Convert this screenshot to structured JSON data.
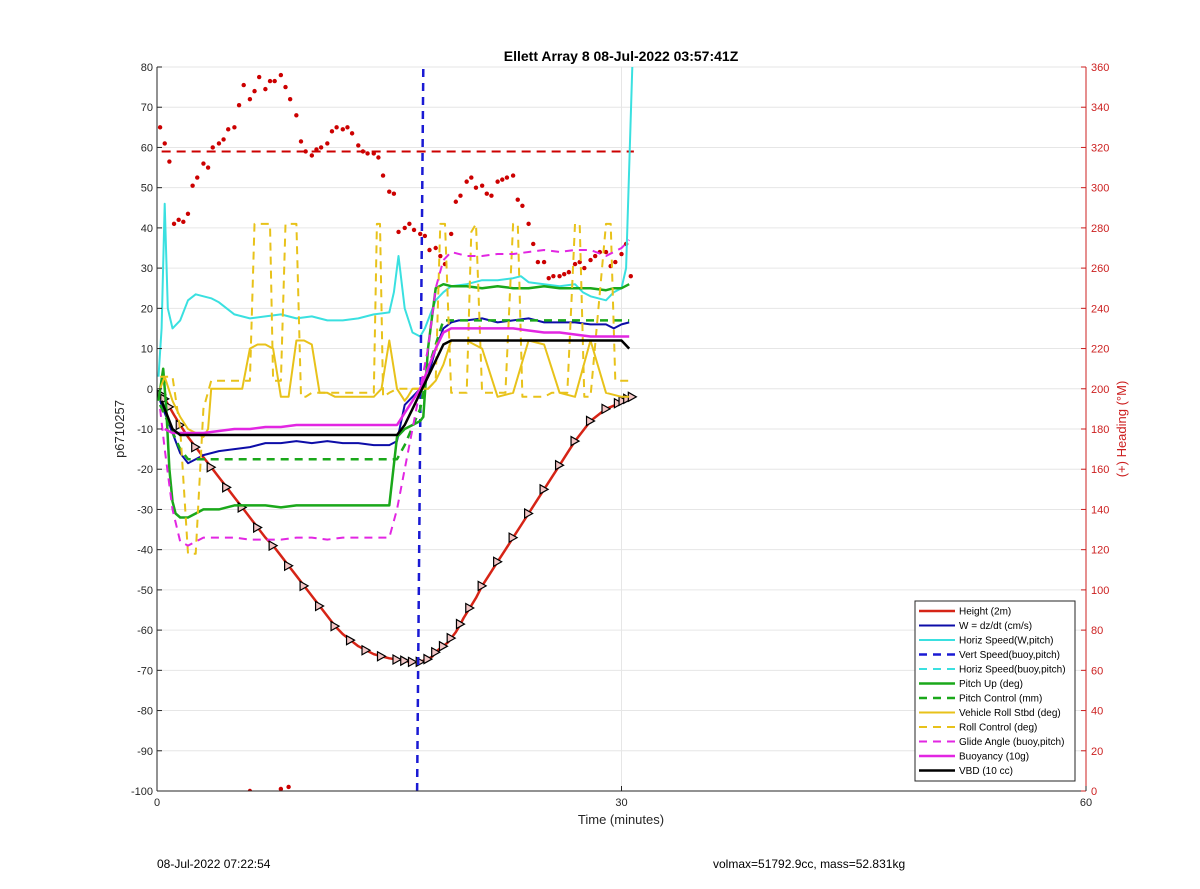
{
  "footer": {
    "timestamp": "08-Jul-2022 07:22:54",
    "stats": "volmax=51792.9cc, mass=52.831kg"
  },
  "chart_data": {
    "type": "line",
    "title": "Ellett Array 8 08-Jul-2022 03:57:41Z",
    "xlabel": "Time (minutes)",
    "ylabel": "p6710257",
    "y2label": "(+) Heading (°M)",
    "xlim": [
      0,
      60
    ],
    "ylim": [
      -100,
      80
    ],
    "y2lim": [
      0,
      360
    ],
    "xticks": [
      0,
      30,
      60
    ],
    "yticks": [
      -100,
      -90,
      -80,
      -70,
      -60,
      -50,
      -40,
      -30,
      -20,
      -10,
      0,
      10,
      20,
      30,
      40,
      50,
      60,
      70,
      80
    ],
    "y2ticks": [
      0,
      20,
      40,
      60,
      80,
      100,
      120,
      140,
      160,
      180,
      200,
      220,
      240,
      260,
      280,
      300,
      320,
      340,
      360
    ],
    "grid": true,
    "legend_position": "bottom-right",
    "colors": {
      "axis": "#262626",
      "right_axis": "#cc1f1f",
      "grid": "#e6e6e6",
      "heading_points": "#cc0000"
    },
    "series": [
      {
        "name": "Height (2m)",
        "color": "#d62416",
        "width": 2.5,
        "dash": "",
        "markers": "triangle",
        "x": [
          0.3,
          0.5,
          0.8,
          1.1,
          1.5,
          2,
          2.5,
          3,
          3.5,
          4,
          4.5,
          5,
          5.5,
          6,
          6.5,
          7,
          7.5,
          8,
          8.5,
          9,
          9.5,
          10,
          10.5,
          11,
          11.5,
          12,
          12.5,
          13,
          13.5,
          14,
          14.5,
          15,
          15.5,
          15.8,
          16,
          16.2,
          16.5,
          16.7,
          17,
          17.2,
          17.5,
          17.8,
          18,
          18.2,
          18.5,
          18.8,
          19,
          19.3,
          19.6,
          19.8,
          20.2,
          20.6,
          21,
          21.5,
          22,
          22.5,
          23,
          23.5,
          24,
          24.5,
          25,
          25.5,
          26,
          26.5,
          27,
          27.5,
          28,
          28.5,
          29,
          29.5,
          29.8,
          30.1,
          30.4,
          30.7
        ],
        "y": [
          -1.5,
          -2.5,
          -4.5,
          -6.5,
          -9,
          -12,
          -14.5,
          -17,
          -19.5,
          -22,
          -24.5,
          -27,
          -29.5,
          -32,
          -34.5,
          -37,
          -39,
          -41.5,
          -44,
          -46.5,
          -49,
          -51.5,
          -54,
          -56.5,
          -59,
          -61,
          -62.5,
          -64,
          -65,
          -66,
          -66.5,
          -67,
          -67.3,
          -67.4,
          -67.6,
          -67.8,
          -67.9,
          -68,
          -67.9,
          -67.6,
          -67.2,
          -66.5,
          -65.5,
          -64.8,
          -64,
          -63,
          -62,
          -60.5,
          -58.5,
          -57,
          -54.5,
          -52,
          -49,
          -46,
          -43,
          -40,
          -37,
          -34,
          -31,
          -28,
          -25,
          -22,
          -19,
          -16,
          -13,
          -10.5,
          -8,
          -6.5,
          -5,
          -4.2,
          -3.6,
          -3,
          -2.5,
          -2
        ]
      },
      {
        "name": "W = dz/dt (cm/s)",
        "color": "#0d0da8",
        "width": 2,
        "dash": "",
        "x": [
          0.2,
          0.5,
          1,
          1.5,
          2,
          2.5,
          3,
          3.5,
          4,
          5,
          6,
          7,
          8,
          9,
          10,
          11,
          12,
          13,
          14,
          15,
          15.5,
          16,
          16.5,
          17,
          17.5,
          18,
          18.5,
          19,
          19.5,
          20,
          21,
          22,
          23,
          24,
          25,
          26,
          27,
          28,
          29,
          29.5,
          30,
          30.5
        ],
        "y": [
          -3,
          -6,
          -11,
          -16,
          -18.5,
          -17.5,
          -16.5,
          -16,
          -15.5,
          -15,
          -14.5,
          -13.5,
          -13.5,
          -13,
          -13.5,
          -13,
          -13.5,
          -13.5,
          -14,
          -14,
          -13,
          -4,
          -2,
          0,
          3,
          10,
          15,
          16.5,
          17,
          17,
          17.5,
          16.5,
          17,
          17.5,
          16.5,
          16.5,
          16.5,
          16,
          16,
          15,
          16,
          16.5
        ]
      },
      {
        "name": "Horiz Speed(W,pitch)",
        "color": "#3ae0e0",
        "width": 2,
        "dash": "",
        "x": [
          0.1,
          0.3,
          0.5,
          0.7,
          1,
          1.5,
          2,
          2.5,
          3,
          3.5,
          4,
          5,
          6,
          7,
          8,
          9,
          10,
          11,
          12,
          13,
          14,
          15,
          15.3,
          15.6,
          16,
          16.5,
          17,
          17.3,
          17.6,
          18,
          18.5,
          19,
          20,
          21,
          22,
          23,
          23.5,
          24,
          25,
          26,
          27,
          27.5,
          28,
          29,
          29.5,
          30,
          30.3,
          30.5,
          30.7
        ],
        "y": [
          3,
          15,
          46,
          20,
          15,
          17,
          22,
          23.5,
          23,
          22.5,
          21.5,
          18.5,
          17.5,
          18,
          18.5,
          17.5,
          18,
          17,
          17,
          17.5,
          18.5,
          19,
          24,
          33,
          20,
          14,
          13,
          15,
          18,
          22,
          24,
          25.5,
          26,
          27,
          27,
          27.5,
          28,
          26.5,
          26,
          25.5,
          26,
          24,
          23,
          22,
          24,
          25,
          30,
          55,
          80
        ]
      },
      {
        "name": "Vert Speed(buoy,pitch)",
        "color": "#1a1ad4",
        "width": 2.5,
        "dash": "8,6",
        "x": [
          16.8,
          17.2
        ],
        "y": [
          -100,
          80
        ]
      },
      {
        "name": "Horiz Speed(buoy,pitch)",
        "color": "#3ae0e0",
        "width": 2,
        "dash": "8,6",
        "x": [],
        "y": []
      },
      {
        "name": "Pitch Up (deg)",
        "color": "#1aa81a",
        "width": 2.5,
        "dash": "",
        "x": [
          0.1,
          0.4,
          0.6,
          0.8,
          1,
          1.2,
          1.5,
          2,
          2.5,
          3,
          3.5,
          4,
          5,
          6,
          7,
          8,
          9,
          10,
          11,
          12,
          13,
          14,
          15,
          15.5,
          16,
          16.5,
          17,
          17.2,
          17.5,
          18,
          18.5,
          19,
          20,
          21,
          22,
          23,
          24,
          25,
          26,
          27,
          28,
          29,
          29.5,
          30,
          30.5
        ],
        "y": [
          -3,
          5,
          -5,
          -20,
          -28,
          -31,
          -32,
          -32,
          -31,
          -30,
          -30,
          -30,
          -29,
          -29,
          -29,
          -29.5,
          -29,
          -29,
          -29,
          -29,
          -29,
          -29,
          -29,
          -12,
          -10,
          -9,
          -8,
          -7,
          10,
          25,
          26,
          25.5,
          25.5,
          25,
          25.5,
          25,
          25,
          25.5,
          25,
          25,
          25,
          24.5,
          25,
          25,
          26
        ]
      },
      {
        "name": "Pitch Control (mm)",
        "color": "#1aa81a",
        "width": 2.5,
        "dash": "8,6",
        "x": [
          0.2,
          1.5,
          2,
          3,
          15.5,
          16,
          17,
          17.5,
          18.5,
          30.5
        ],
        "y": [
          -4,
          -15,
          -17.5,
          -17.5,
          -17.5,
          -14,
          -5,
          5,
          17,
          17
        ]
      },
      {
        "name": "Vehicle Roll Stbd (deg)",
        "color": "#e8c21a",
        "width": 2,
        "dash": "",
        "x": [
          0.2,
          0.5,
          1,
          1.5,
          2,
          2.5,
          3,
          3.3,
          3.5,
          4,
          4.5,
          5,
          5.5,
          6,
          6.5,
          7,
          7.5,
          8,
          8.5,
          9,
          9.5,
          10,
          10.5,
          11,
          11.5,
          12,
          13,
          14,
          14.5,
          15,
          15.5,
          16,
          16.2,
          16.5,
          17,
          17.5,
          18,
          18.5,
          19,
          20,
          21,
          22,
          23,
          24,
          25,
          26,
          27,
          28,
          29,
          30,
          30.5
        ],
        "y": [
          0,
          3,
          -3,
          -7,
          -10,
          -11,
          -12,
          -10,
          0,
          0,
          0,
          0,
          0,
          10,
          11,
          11,
          10,
          -2,
          -2,
          12,
          12,
          11,
          -1,
          -1,
          -2,
          -2,
          -2,
          -2,
          0,
          12,
          0,
          -3,
          -2,
          0,
          0,
          0,
          2,
          6,
          12,
          12,
          10,
          -2,
          -1,
          12,
          11,
          -1,
          -2,
          12,
          -1,
          -2,
          -2
        ]
      },
      {
        "name": "Roll Control (deg)",
        "color": "#e8c21a",
        "width": 2,
        "dash": "8,6",
        "x": [
          0.2,
          1,
          1.5,
          2,
          2.5,
          3,
          3.5,
          4,
          4.5,
          5,
          5.5,
          6,
          6.3,
          6.5,
          7,
          7.3,
          7.5,
          8,
          8.3,
          8.6,
          9,
          9.3,
          9.6,
          10,
          11,
          12,
          13,
          14,
          14.2,
          14.4,
          14.6,
          15,
          15.5,
          16,
          16.5,
          17,
          17.5,
          18,
          18.3,
          18.6,
          19,
          19.5,
          20,
          20.3,
          20.6,
          21,
          21.5,
          22,
          22.5,
          23,
          23.3,
          23.6,
          24,
          24.5,
          25,
          25.5,
          26,
          26.5,
          27,
          27.3,
          27.6,
          28,
          29,
          29.3,
          29.6,
          30,
          30.5
        ],
        "y": [
          3,
          3,
          -10,
          -41,
          -41,
          -5,
          2,
          2,
          2,
          2,
          2,
          2,
          41,
          41,
          41,
          41,
          2,
          2,
          41,
          41,
          41,
          -2,
          -2,
          -1,
          -1,
          -1,
          -1,
          -1,
          41,
          41,
          -2,
          -1,
          0,
          0,
          0,
          0,
          0,
          2,
          41,
          41,
          -1,
          -1,
          -1,
          39,
          41,
          -1,
          -1,
          -1,
          -1,
          41,
          41,
          -2,
          -2,
          -2,
          -2,
          -1,
          -1,
          -1,
          41,
          41,
          -2,
          -2,
          41,
          41,
          2,
          2,
          2
        ]
      },
      {
        "name": "Glide Angle (buoy,pitch)",
        "color": "#e226e2",
        "width": 2,
        "dash": "8,6",
        "x": [
          0.2,
          0.5,
          1,
          1.5,
          2,
          2.5,
          3,
          3.5,
          4,
          5,
          6,
          7,
          8,
          9,
          10,
          11,
          12,
          13,
          14,
          15,
          15.5,
          16,
          16.5,
          17,
          17.5,
          18,
          18.5,
          19,
          20,
          21,
          22,
          23,
          24,
          25,
          26,
          27,
          28,
          29,
          30,
          30.5
        ],
        "y": [
          -5,
          -15,
          -30,
          -38,
          -39,
          -38,
          -37,
          -37,
          -37,
          -37,
          -37.5,
          -37.5,
          -37.5,
          -37,
          -37,
          -37.5,
          -37,
          -37,
          -37,
          -37,
          -30,
          -20,
          -10,
          0,
          10,
          25,
          32,
          34,
          33,
          33,
          33.5,
          33.5,
          34,
          34.5,
          34,
          34.5,
          34.5,
          33,
          35,
          37
        ]
      },
      {
        "name": "Buoyancy (10g)",
        "color": "#e226e2",
        "width": 2.5,
        "dash": "",
        "x": [
          0.5,
          1,
          2,
          3,
          4,
          5,
          6,
          7,
          8,
          9,
          10,
          11,
          12,
          13,
          14,
          15,
          15.5,
          16,
          16.5,
          17,
          17.5,
          18,
          18.5,
          19,
          20,
          21,
          22,
          23,
          24,
          25,
          26,
          27,
          28,
          29,
          30,
          30.5
        ],
        "y": [
          -10,
          -11,
          -11,
          -11,
          -10.5,
          -10,
          -10,
          -9.5,
          -9.5,
          -9,
          -9,
          -9,
          -9,
          -9,
          -9,
          -9,
          -9,
          -6,
          -3,
          0,
          5,
          10,
          14,
          15,
          15,
          15,
          15,
          15,
          14.5,
          14,
          14,
          13.5,
          13,
          13,
          13,
          13
        ]
      },
      {
        "name": "VBD (10 cc)",
        "color": "#000000",
        "width": 2.5,
        "dash": "",
        "x": [
          0.3,
          1,
          1.5,
          2,
          3,
          5,
          7,
          9,
          11,
          13,
          15,
          15.5,
          16,
          16.5,
          17,
          17.5,
          18,
          18.5,
          19,
          20,
          22,
          24,
          26,
          28,
          30,
          30.5
        ],
        "y": [
          -3,
          -10,
          -11.5,
          -11.5,
          -11.5,
          -11.5,
          -11.5,
          -11.5,
          -11.5,
          -11.5,
          -11.5,
          -11.5,
          -9,
          -5,
          -1,
          3,
          7,
          11,
          12,
          12,
          12,
          12,
          12,
          12,
          12,
          10
        ]
      }
    ],
    "heading": {
      "name": "Heading",
      "color": "#cc0000",
      "reference_line": 318,
      "x": [
        0.2,
        0.5,
        0.8,
        1.1,
        1.4,
        1.7,
        2,
        2.3,
        2.6,
        3,
        3.3,
        3.6,
        4,
        4.3,
        4.6,
        5,
        5.3,
        5.6,
        6,
        6.3,
        6.6,
        7,
        7.3,
        7.6,
        8,
        8.3,
        8.6,
        9,
        9.3,
        9.6,
        10,
        10.3,
        10.6,
        11,
        11.3,
        11.6,
        12,
        12.3,
        12.6,
        13,
        13.3,
        13.6,
        14,
        14.3,
        14.6,
        15,
        15.3,
        15.6,
        16,
        16.3,
        16.6,
        17,
        17.3,
        17.6,
        18,
        18.3,
        18.6,
        19,
        19.3,
        19.6,
        20,
        20.3,
        20.6,
        21,
        21.3,
        21.6,
        22,
        22.3,
        22.6,
        23,
        23.3,
        23.6,
        24,
        24.3,
        24.6,
        25,
        25.3,
        25.6,
        26,
        26.3,
        26.6,
        27,
        27.3,
        27.6,
        28,
        28.3,
        28.6,
        29,
        29.3,
        29.6,
        30,
        30.3,
        30.6,
        6,
        8,
        8.5
      ],
      "y": [
        330,
        322,
        313,
        282,
        284,
        283,
        287,
        301,
        305,
        312,
        310,
        320,
        322,
        324,
        329,
        330,
        341,
        351,
        344,
        348,
        355,
        349,
        353,
        353,
        356,
        350,
        344,
        336,
        323,
        318,
        316,
        319,
        320,
        322,
        328,
        330,
        329,
        330,
        327,
        321,
        318,
        317,
        317,
        315,
        306,
        298,
        297,
        278,
        280,
        282,
        279,
        277,
        276,
        269,
        270,
        266,
        262,
        277,
        293,
        296,
        303,
        305,
        300,
        301,
        297,
        296,
        303,
        304,
        305,
        306,
        294,
        291,
        282,
        272,
        263,
        263,
        255,
        256,
        256,
        257,
        258,
        262,
        263,
        260,
        264,
        266,
        268,
        268,
        261,
        263,
        267,
        272,
        256,
        0,
        1,
        2
      ]
    }
  }
}
